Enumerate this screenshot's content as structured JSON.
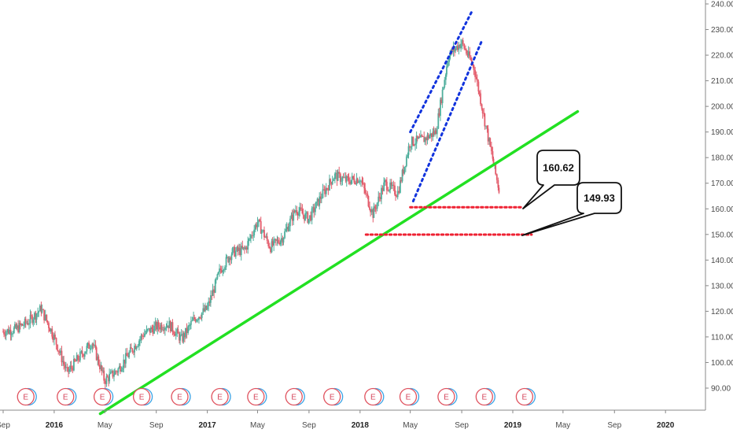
{
  "chart_data": {
    "type": "candlestick",
    "price_axis": {
      "min": 80,
      "max": 240,
      "ticks": [
        "240.00",
        "230.00",
        "220.00",
        "210.00",
        "200.00",
        "190.00",
        "180.00",
        "170.00",
        "160.00",
        "150.00",
        "140.00",
        "130.00",
        "120.00",
        "110.00",
        "100.00",
        "90.00"
      ]
    },
    "time_axis": {
      "start": "2015-09",
      "end": "2020-12",
      "ticks": [
        {
          "label": "Sep",
          "date": "2015-09-01",
          "bold": false
        },
        {
          "label": "2016",
          "date": "2016-01-01",
          "bold": true
        },
        {
          "label": "May",
          "date": "2016-05-01",
          "bold": false
        },
        {
          "label": "Sep",
          "date": "2016-09-01",
          "bold": false
        },
        {
          "label": "2017",
          "date": "2017-01-01",
          "bold": true
        },
        {
          "label": "May",
          "date": "2017-05-01",
          "bold": false
        },
        {
          "label": "Sep",
          "date": "2017-09-01",
          "bold": false
        },
        {
          "label": "2018",
          "date": "2018-01-01",
          "bold": true
        },
        {
          "label": "May",
          "date": "2018-05-01",
          "bold": false
        },
        {
          "label": "Sep",
          "date": "2018-09-01",
          "bold": false
        },
        {
          "label": "2019",
          "date": "2019-01-01",
          "bold": true
        },
        {
          "label": "May",
          "date": "2019-05-01",
          "bold": false
        },
        {
          "label": "Sep",
          "date": "2019-09-01",
          "bold": false
        },
        {
          "label": "2020",
          "date": "2020-01-01",
          "bold": true
        }
      ]
    },
    "price_path": [
      [
        "2015-09-01",
        112
      ],
      [
        "2015-10-01",
        113
      ],
      [
        "2015-11-01",
        116
      ],
      [
        "2015-12-01",
        121
      ],
      [
        "2016-01-01",
        110
      ],
      [
        "2016-02-01",
        96
      ],
      [
        "2016-03-01",
        102
      ],
      [
        "2016-04-01",
        108
      ],
      [
        "2016-05-01",
        93
      ],
      [
        "2016-06-01",
        97
      ],
      [
        "2016-07-01",
        104
      ],
      [
        "2016-08-01",
        111
      ],
      [
        "2016-09-01",
        114
      ],
      [
        "2016-10-01",
        115
      ],
      [
        "2016-11-01",
        109
      ],
      [
        "2016-12-01",
        117
      ],
      [
        "2017-01-01",
        121
      ],
      [
        "2017-02-01",
        136
      ],
      [
        "2017-03-01",
        143
      ],
      [
        "2017-04-01",
        144
      ],
      [
        "2017-05-01",
        155
      ],
      [
        "2017-06-01",
        145
      ],
      [
        "2017-07-01",
        149
      ],
      [
        "2017-08-01",
        160
      ],
      [
        "2017-09-01",
        156
      ],
      [
        "2017-10-01",
        165
      ],
      [
        "2017-11-01",
        173
      ],
      [
        "2017-12-01",
        171
      ],
      [
        "2018-01-01",
        172
      ],
      [
        "2018-02-01",
        158
      ],
      [
        "2018-03-01",
        170
      ],
      [
        "2018-04-01",
        166
      ],
      [
        "2018-05-01",
        186
      ],
      [
        "2018-06-01",
        187
      ],
      [
        "2018-07-01",
        190
      ],
      [
        "2018-08-01",
        220
      ],
      [
        "2018-09-01",
        225
      ],
      [
        "2018-10-01",
        215
      ],
      [
        "2018-11-01",
        190
      ],
      [
        "2018-12-01",
        166
      ]
    ],
    "annotations": {
      "trendline": {
        "color": "#22e022",
        "from": [
          "2016-04-20",
          80
        ],
        "to": [
          "2019-06-05",
          198
        ]
      },
      "channel_lines": [
        {
          "color": "#1133dd",
          "from": [
            "2018-05-01",
            190
          ],
          "to": [
            "2018-09-25",
            237
          ]
        },
        {
          "color": "#1133dd",
          "from": [
            "2018-05-08",
            163
          ],
          "to": [
            "2018-10-20",
            226
          ]
        }
      ],
      "levels": [
        {
          "value": 160.62,
          "label": "160.62",
          "color": "#ee2233",
          "from": "2018-05-01",
          "to": "2019-01-20"
        },
        {
          "value": 149.93,
          "label": "149.93",
          "color": "#ee2233",
          "from": "2018-01-15",
          "to": "2019-02-15"
        }
      ]
    },
    "earnings_markers": {
      "symbol": "E",
      "dates": [
        "2015-10-25",
        "2016-01-28",
        "2016-04-25",
        "2016-07-28",
        "2016-10-27",
        "2017-01-31",
        "2017-04-27",
        "2017-07-27",
        "2017-10-26",
        "2018-02-01",
        "2018-04-26",
        "2018-07-26",
        "2018-10-25",
        "2019-01-29"
      ]
    }
  }
}
